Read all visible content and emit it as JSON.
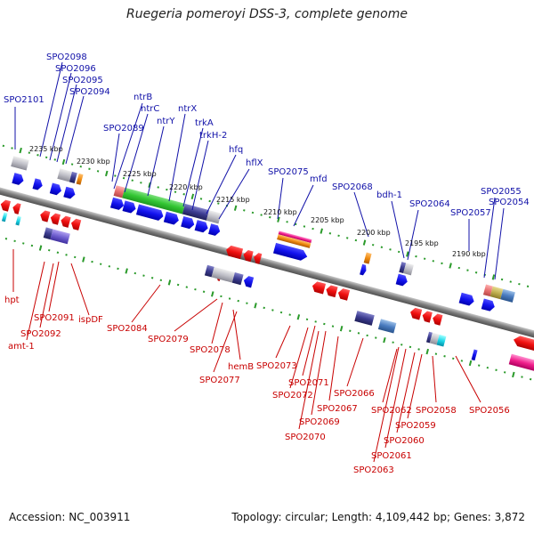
{
  "title": "Ruegeria pomeroyi DSS-3, complete genome",
  "footer": {
    "accession": "Accession: NC_003911",
    "summary": "Topology: circular; Length: 4,109,442 bp; Genes: 3,872"
  },
  "colors": {
    "top_label": "#1010a8",
    "bottom_label": "#c80000",
    "ruler_dot": "#2a9a2a",
    "backbone": "#8a8a8a"
  },
  "position_labels": [
    "2235 kbp",
    "2230 kbp",
    "2225 kbp",
    "2220 kbp",
    "2215 kbp",
    "2210 kbp",
    "2205 kbp",
    "2200 kbp",
    "2195 kbp",
    "2190 kbp"
  ],
  "top_genes": [
    "SPO2101",
    "SPO2098",
    "SPO2096",
    "SPO2095",
    "SPO2094",
    "SPO2089",
    "ntrB",
    "ntrC",
    "ntrY",
    "ntrX",
    "trkA",
    "trkH-2",
    "hfq",
    "hflX",
    "SPO2075",
    "mfd",
    "SPO2068",
    "bdh-1",
    "SPO2064",
    "SPO2057",
    "SPO2055",
    "SPO2054"
  ],
  "bottom_genes": [
    "hpt",
    "SPO2091",
    "SPO2092",
    "amt-1",
    "ispDF",
    "SPO2084",
    "SPO2079",
    "SPO2078",
    "hemB",
    "SPO2077",
    "SPO2073",
    "SPO2071",
    "SPO2072",
    "SPO2069",
    "SPO2070",
    "SPO2067",
    "SPO2066",
    "SPO2062",
    "SPO2061",
    "SPO2063",
    "SPO2060",
    "SPO2059",
    "SPO2058",
    "SPO2056"
  ]
}
